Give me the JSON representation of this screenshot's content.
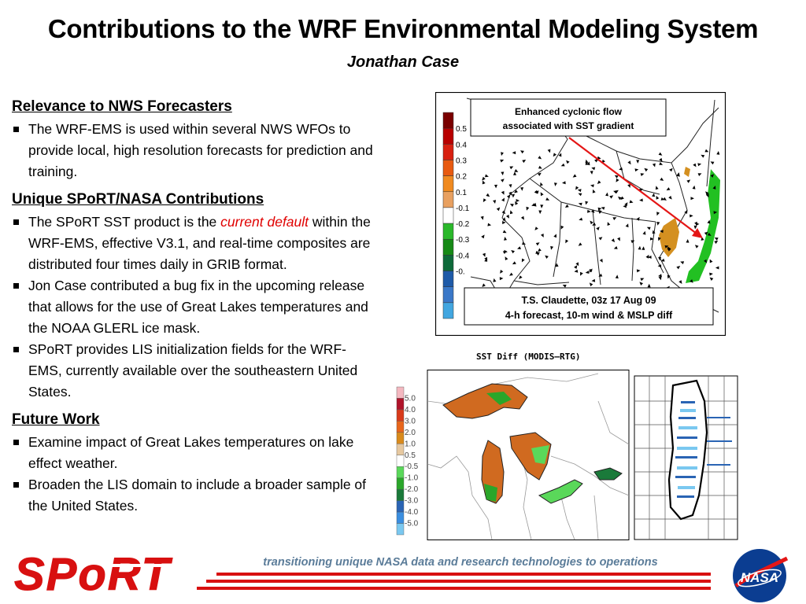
{
  "slide": {
    "title": "Contributions to the WRF Environmental Modeling System",
    "author": "Jonathan Case"
  },
  "sections": [
    {
      "heading": "Relevance to NWS Forecasters",
      "bullets": [
        "The WRF-EMS is used within several NWS WFOs to provide local, high resolution forecasts for prediction and training."
      ]
    },
    {
      "heading": "Unique SPoRT/NASA Contributions",
      "bullets": [
        {
          "before": "The SPoRT SST product is the ",
          "emphasis": "current default",
          "after": " within the WRF-EMS, effective V3.1, and real-time composites are distributed four times daily in GRIB format."
        },
        "Jon Case contributed a bug fix in the upcoming release that allows for the use of Great Lakes temperatures and the NOAA GLERL ice mask.",
        "SPoRT provides LIS initialization fields for the WRF-EMS, currently available over the southeastern United States."
      ]
    },
    {
      "heading": "Future Work",
      "bullets": [
        "Examine impact of Great Lakes temperatures on lake effect weather.",
        "Broaden the LIS domain to include a broader sample of the United States."
      ]
    }
  ],
  "wind_map": {
    "callout_top_line1": "Enhanced cyclonic flow",
    "callout_top_line2": "associated with SST gradient",
    "callout_bottom_line1": "T.S. Claudette, 03z 17 Aug 09",
    "callout_bottom_line2": "4-h forecast, 10-m wind & MSLP diff",
    "colorbar_labels": [
      "0.5",
      "0.4",
      "0.3",
      "0.2",
      "0.1",
      "-0.1",
      "-0.2",
      "-0.3",
      "-0.4",
      "-0."
    ],
    "colorbar_colors": [
      "#7a0000",
      "#b80000",
      "#d82010",
      "#e85a10",
      "#f08a20",
      "#e8a060",
      "#ffffff",
      "#2ab82a",
      "#168a16",
      "#0e6a3a",
      "#1e5aa8",
      "#3a78c8",
      "#42a6e0"
    ]
  },
  "sst_diff": {
    "title": "SST Diff (MODIS–RTG)",
    "colorbar_labels": [
      "5.0",
      "4.0",
      "3.0",
      "2.0",
      "1.0",
      "0.5",
      "-0.5",
      "-1.0",
      "-2.0",
      "-3.0",
      "-4.0",
      "-5.0"
    ],
    "colorbar_colors": [
      "#f4b8c0",
      "#b0142a",
      "#d83a1a",
      "#e8661c",
      "#d98a1c",
      "#e6c8a0",
      "#ffffff",
      "#5ad85a",
      "#2aa62a",
      "#1a7a3a",
      "#2a64b4",
      "#3a8ee0",
      "#7ac8f0"
    ]
  },
  "footer": {
    "logo_text": "SPoRT",
    "tagline": "transitioning unique NASA data and research technologies to operations",
    "nasa_text": "NASA"
  }
}
